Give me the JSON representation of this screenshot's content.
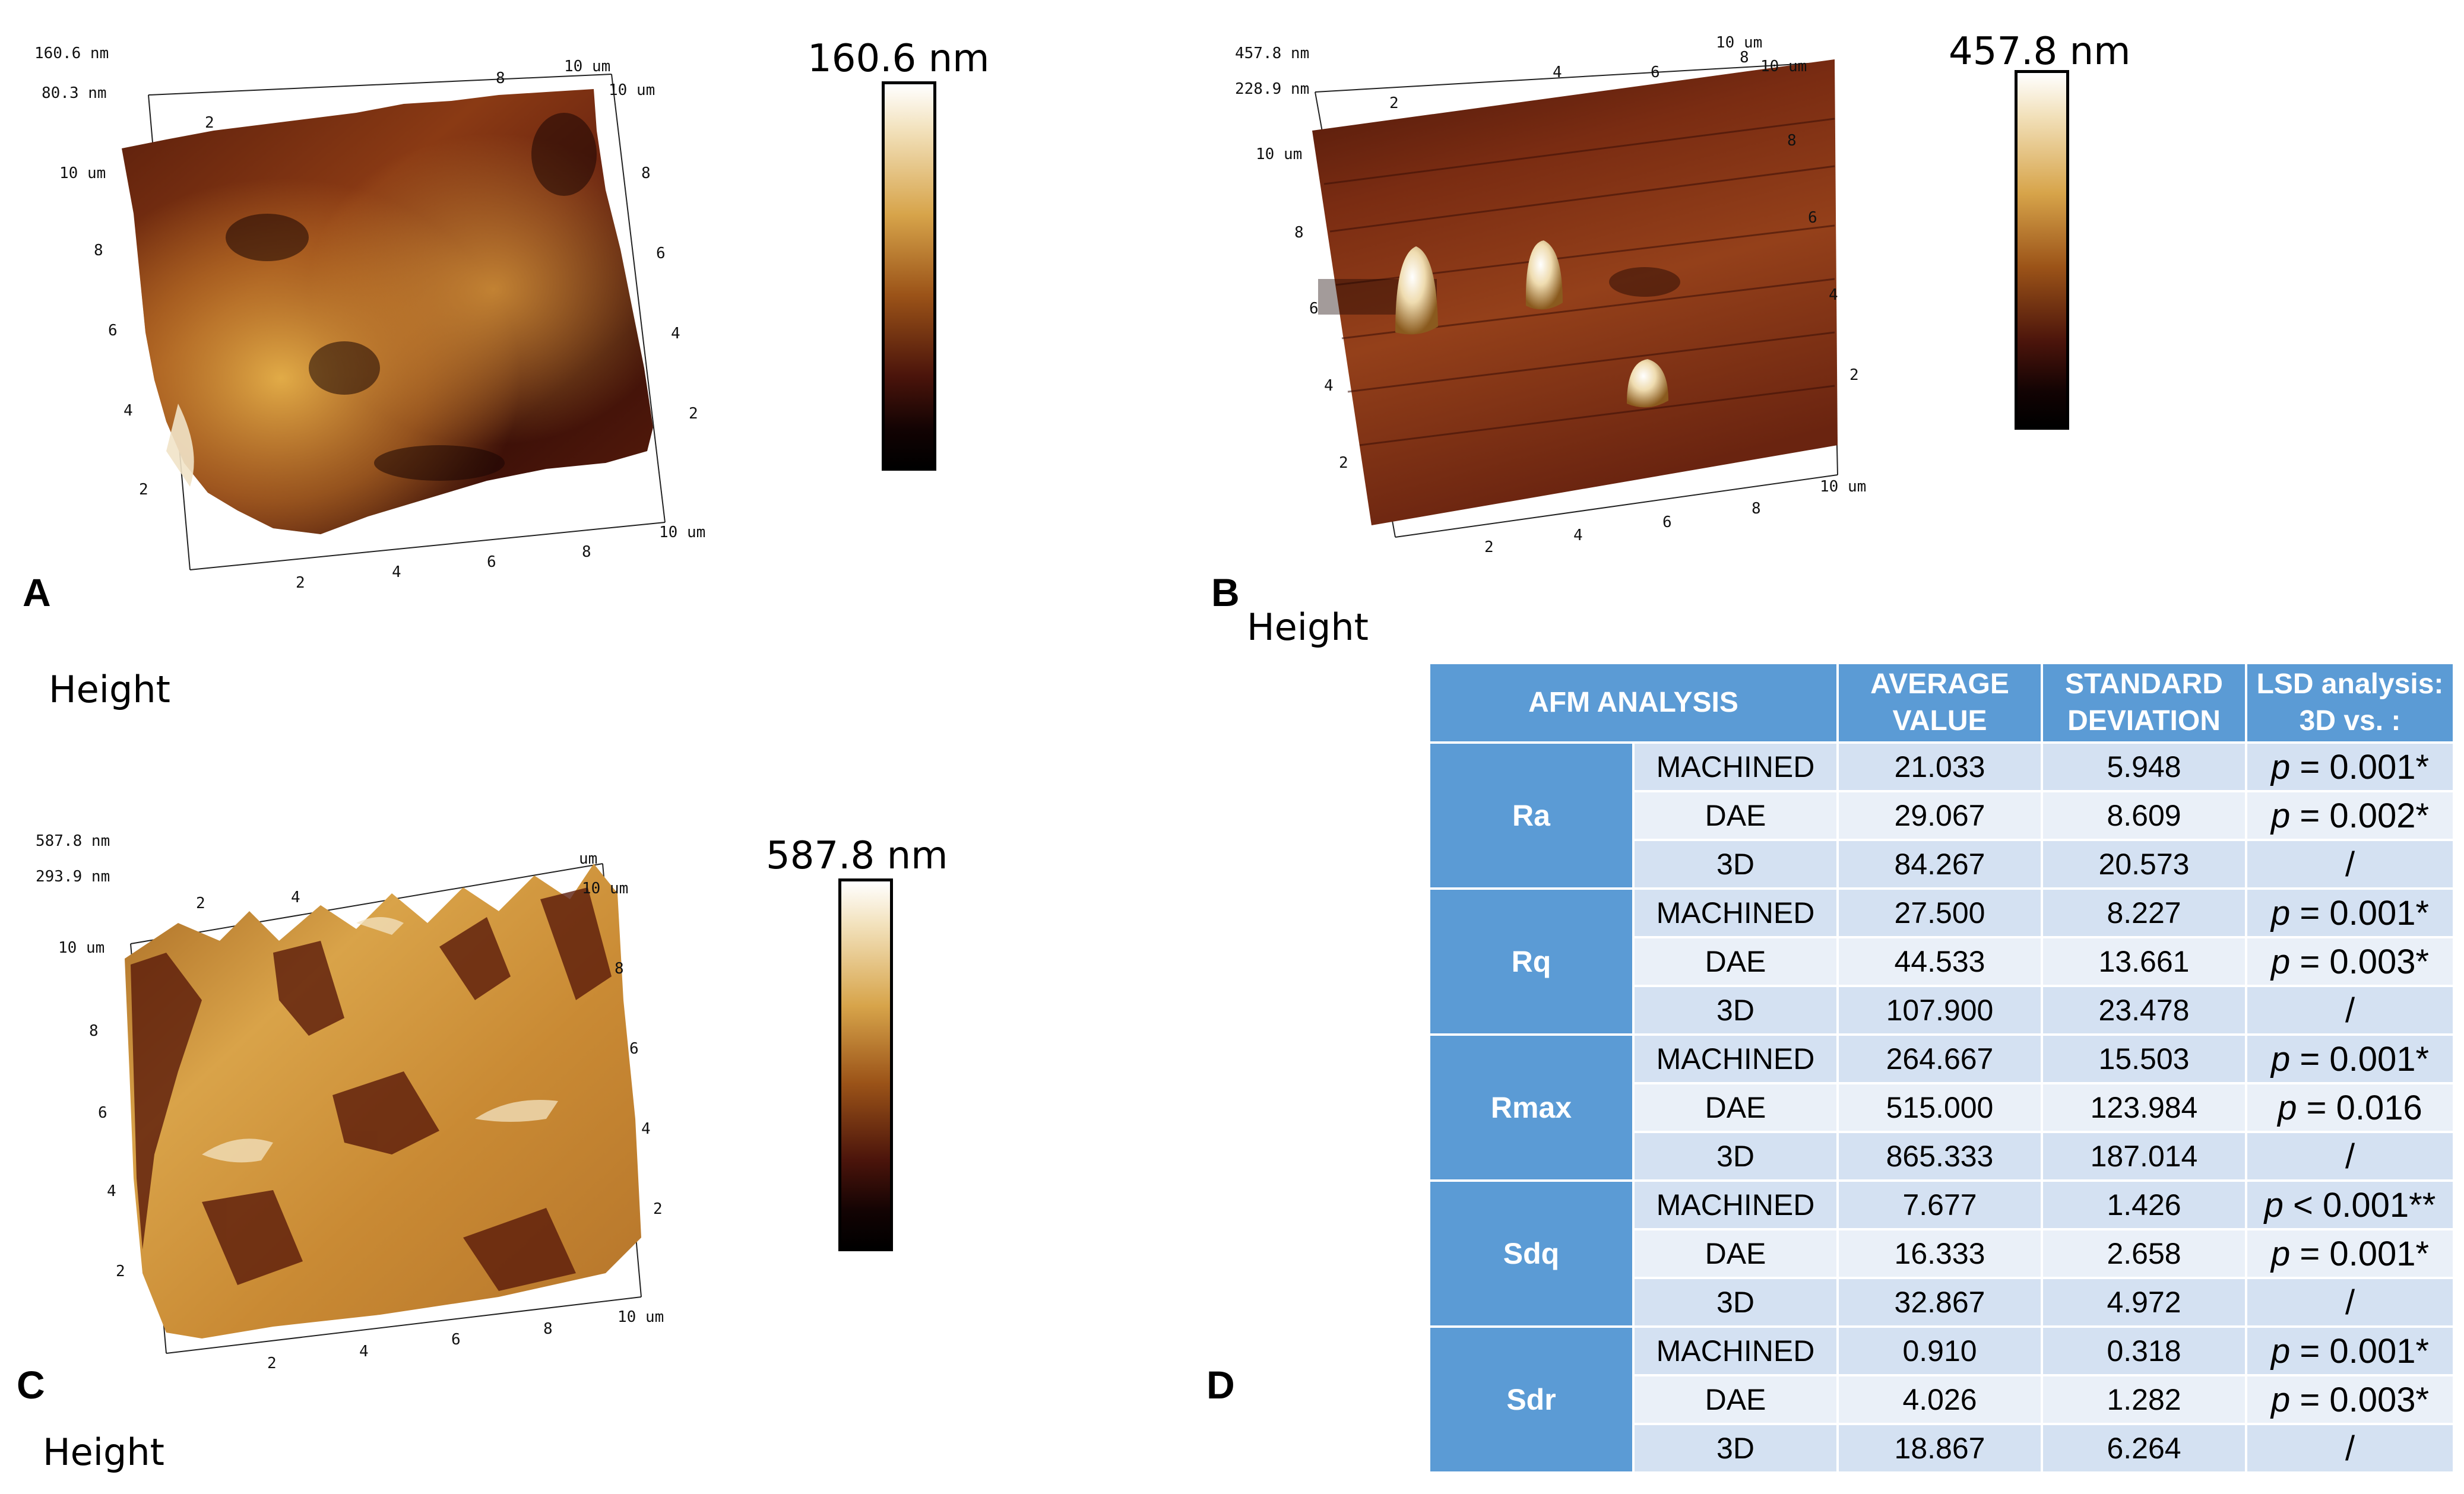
{
  "panels": [
    {
      "id": "A",
      "letter": "A",
      "height_label": "Height",
      "max_label": "160.6 nm",
      "z_top": "160.6 nm",
      "z_mid": "80.3 nm",
      "axis_labels": {
        "y_end": "10 um",
        "y_ticks": [
          "2",
          "4",
          "6",
          "8"
        ],
        "x_end": "10 um",
        "x_ticks": [
          "2",
          "4",
          "6",
          "8"
        ],
        "top_end": "10 um",
        "top_ticks": [
          "2",
          "8"
        ],
        "right_end": "10 um",
        "right_ticks": [
          "2",
          "4",
          "6",
          "8"
        ]
      }
    },
    {
      "id": "B",
      "letter": "B",
      "height_label": "Height",
      "max_label": "457.8 nm",
      "z_top": "457.8 nm",
      "z_mid": "228.9 nm",
      "axis_labels": {
        "y_end": "10 um",
        "y_ticks": [
          "2",
          "4",
          "6",
          "8"
        ],
        "x_end": "10 um",
        "x_ticks": [
          "2",
          "4",
          "6",
          "8"
        ],
        "top_end": "10 um",
        "top_ticks": [
          "2",
          "4",
          "6",
          "8"
        ],
        "right_end": "10 um",
        "right_ticks": [
          "2",
          "4",
          "6",
          "8"
        ]
      }
    },
    {
      "id": "C",
      "letter": "C",
      "height_label": "Height",
      "max_label": "587.8 nm",
      "z_top": "587.8 nm",
      "z_mid": "293.9 nm",
      "axis_labels": {
        "y_end": "10 um",
        "y_ticks": [
          "2",
          "4",
          "6",
          "8"
        ],
        "x_end": "10 um",
        "x_ticks": [
          "2",
          "4",
          "6",
          "8"
        ],
        "top_end": "um",
        "top_ticks": [
          "2",
          "4"
        ],
        "right_end": "10 um",
        "right_ticks": [
          "2",
          "4",
          "6",
          "8"
        ]
      }
    }
  ],
  "panel_d": {
    "letter": "D",
    "headers": [
      "AFM ANALYSIS",
      "AVERAGE VALUE",
      "STANDARD DEVIATION",
      "LSD analysis: 3D vs. :"
    ],
    "groups": [
      {
        "param": "Ra",
        "rows": [
          {
            "sample": "MACHINED",
            "avg": "21.033",
            "sd": "5.948",
            "lsd_p": "p",
            "lsd_rest": " = 0.001*"
          },
          {
            "sample": "DAE",
            "avg": "29.067",
            "sd": "8.609",
            "lsd_p": "p",
            "lsd_rest": " = 0.002*"
          },
          {
            "sample": "3D",
            "avg": "84.267",
            "sd": "20.573",
            "lsd_p": "",
            "lsd_rest": "/"
          }
        ]
      },
      {
        "param": "Rq",
        "rows": [
          {
            "sample": "MACHINED",
            "avg": "27.500",
            "sd": "8.227",
            "lsd_p": "p",
            "lsd_rest": " = 0.001*"
          },
          {
            "sample": "DAE",
            "avg": "44.533",
            "sd": "13.661",
            "lsd_p": "p",
            "lsd_rest": " = 0.003*"
          },
          {
            "sample": "3D",
            "avg": "107.900",
            "sd": "23.478",
            "lsd_p": "",
            "lsd_rest": "/"
          }
        ]
      },
      {
        "param": "Rmax",
        "rows": [
          {
            "sample": "MACHINED",
            "avg": "264.667",
            "sd": "15.503",
            "lsd_p": "p",
            "lsd_rest": " = 0.001*"
          },
          {
            "sample": "DAE",
            "avg": "515.000",
            "sd": "123.984",
            "lsd_p": "p",
            "lsd_rest": " = 0.016"
          },
          {
            "sample": "3D",
            "avg": "865.333",
            "sd": "187.014",
            "lsd_p": "",
            "lsd_rest": "/"
          }
        ]
      },
      {
        "param": "Sdq",
        "rows": [
          {
            "sample": "MACHINED",
            "avg": "7.677",
            "sd": "1.426",
            "lsd_p": "p",
            "lsd_rest": " < 0.001**"
          },
          {
            "sample": "DAE",
            "avg": "16.333",
            "sd": "2.658",
            "lsd_p": "p",
            "lsd_rest": " = 0.001*"
          },
          {
            "sample": "3D",
            "avg": "32.867",
            "sd": "4.972",
            "lsd_p": "",
            "lsd_rest": "/"
          }
        ]
      },
      {
        "param": "Sdr",
        "rows": [
          {
            "sample": "MACHINED",
            "avg": "0.910",
            "sd": "0.318",
            "lsd_p": "p",
            "lsd_rest": " = 0.001*"
          },
          {
            "sample": "DAE",
            "avg": "4.026",
            "sd": "1.282",
            "lsd_p": "p",
            "lsd_rest": " = 0.003*"
          },
          {
            "sample": "3D",
            "avg": "18.867",
            "sd": "6.264",
            "lsd_p": "",
            "lsd_rest": "/"
          }
        ]
      }
    ]
  }
}
